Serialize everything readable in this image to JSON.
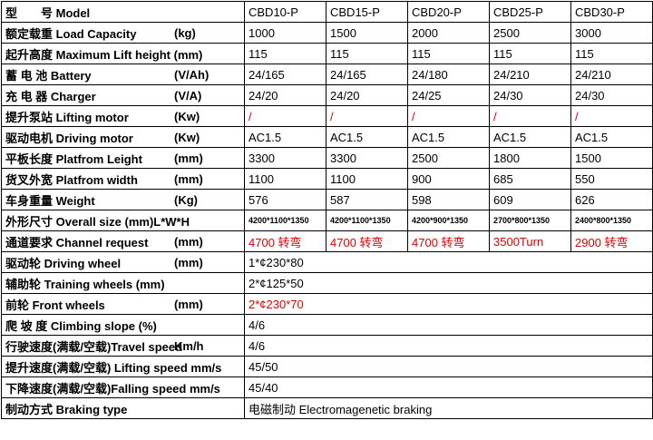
{
  "table": {
    "rows": [
      {
        "label": "型　　号 Model",
        "cells": [
          "CBD10-P",
          "CBD15-P",
          "CBD20-P",
          "CBD25-P",
          "CBD30-P"
        ]
      },
      {
        "label": "额定载重 Load Capacity",
        "unit": "(kg)",
        "cells": [
          "1000",
          "1500",
          "2000",
          "2500",
          "3000"
        ]
      },
      {
        "label": "起升高度 Maximum Lift height (mm)",
        "cells": [
          "115",
          "115",
          "115",
          "115",
          "115"
        ]
      },
      {
        "label": "蓄 电 池 Battery",
        "unit": "(V/Ah)",
        "cells": [
          "24/165",
          "24/165",
          "24/180",
          "24/210",
          "24/210"
        ]
      },
      {
        "label": "充 电 器 Charger",
        "unit": "(V/A)",
        "cells": [
          "24/20",
          "24/20",
          "24/25",
          "24/30",
          "24/30"
        ]
      },
      {
        "label": "提升泵站 Lifting motor",
        "unit": "(Kw)",
        "cells": [
          "/",
          "/",
          "/",
          "/",
          "/"
        ],
        "color": "#e00000"
      },
      {
        "label": "驱动电机 Driving motor",
        "unit": "(Kw)",
        "cells": [
          "AC1.5",
          "AC1.5",
          "AC1.5",
          "AC1.5",
          "AC1.5"
        ]
      },
      {
        "label": "平板长度 Platfrom Leight",
        "unit": "(mm)",
        "cells": [
          "3300",
          "3300",
          "2500",
          "1800",
          "1500"
        ]
      },
      {
        "label": "货叉外宽 Platfrom width",
        "unit": "(mm)",
        "cells": [
          "1100",
          "1100",
          "900",
          "685",
          "550"
        ]
      },
      {
        "label": "车身重量 Weight",
        "unit": "(Kg)",
        "cells": [
          "576",
          "587",
          "598",
          "609",
          "626"
        ]
      },
      {
        "label": "外形尺寸 Overall size (mm)L*W*H",
        "cells": [
          "4200*1100*1350",
          "4200*1100*1350",
          "4200*900*1350",
          "2700*800*1350",
          "2400*800*1350"
        ],
        "small": true
      },
      {
        "label": "通道要求 Channel request",
        "unit": "(mm)",
        "cells": [
          "4700 转弯",
          "4700 转弯",
          "4700 转弯",
          "3500Turn",
          "2900 转弯"
        ],
        "color": "#e00000"
      },
      {
        "label": "驱动轮 Driving wheel",
        "unit": "(mm)",
        "cells": [
          "1*¢230*80"
        ]
      },
      {
        "label": "辅助轮 Training wheels (mm)",
        "cells": [
          "2*¢125*50"
        ]
      },
      {
        "label": "前轮 Front wheels",
        "unit": "(mm)",
        "cells": [
          "2*¢230*70"
        ],
        "color": "#e00000"
      },
      {
        "label": "爬 坡 度 Climbing slope (%)",
        "cells": [
          "4/6"
        ]
      },
      {
        "label": "行驶速度(满载/空载)Travel speed",
        "unit": "Km/h",
        "cells": [
          "4/6"
        ]
      },
      {
        "label": "提升速度(满载/空载) Lifting speed mm/s",
        "cells": [
          "45/50"
        ]
      },
      {
        "label": "下降速度(满载/空载)Falling speed mm/s",
        "cells": [
          "45/40"
        ]
      },
      {
        "label": "制动方式 Braking type",
        "cells": [
          "电磁制动 Electromagenetic braking"
        ]
      }
    ]
  }
}
